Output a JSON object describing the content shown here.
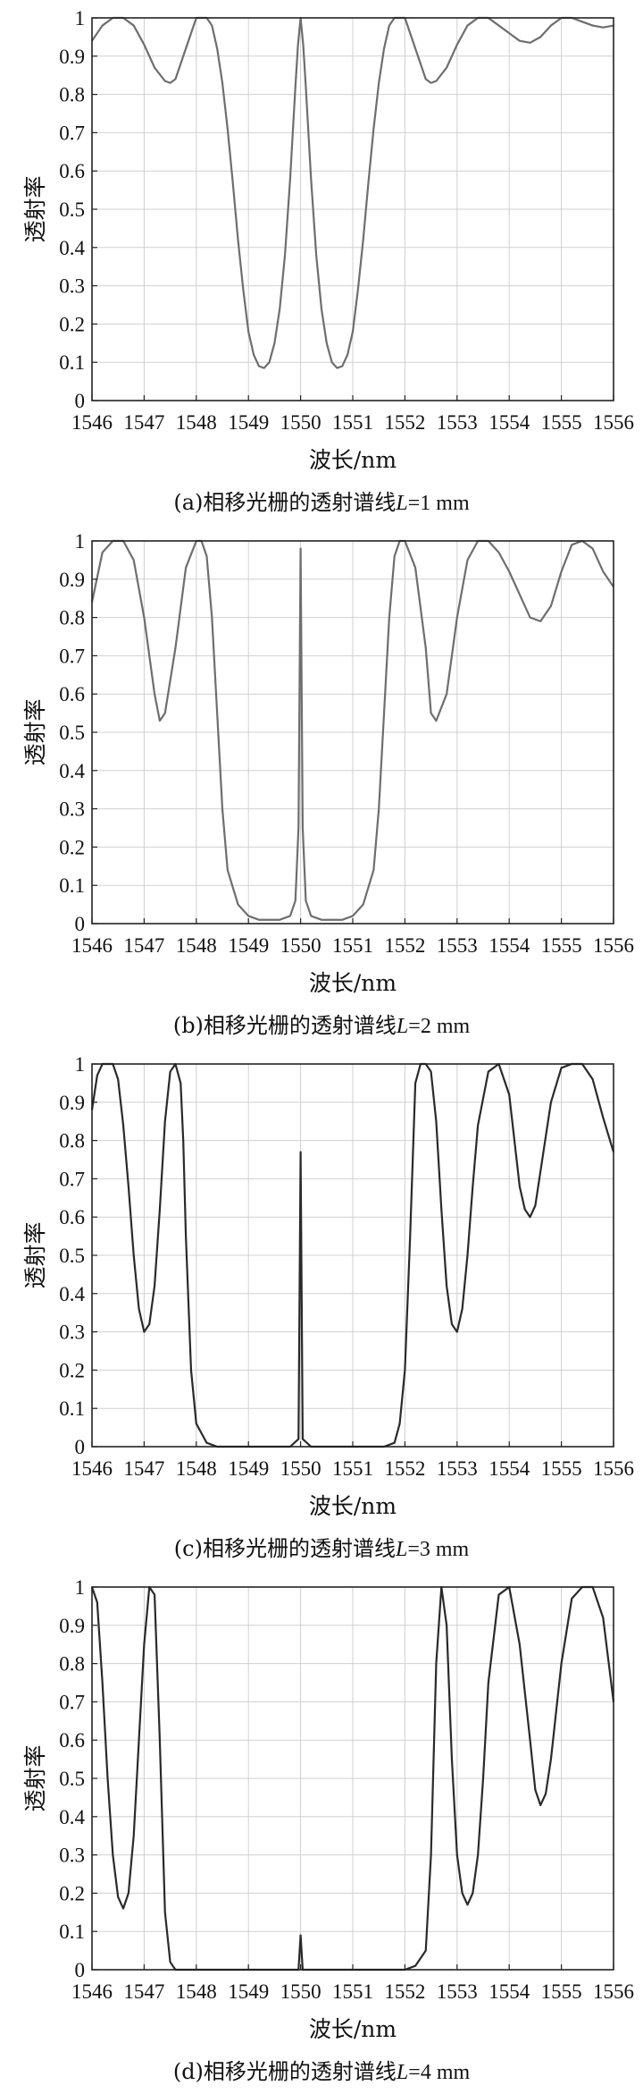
{
  "chart_data": [
    {
      "type": "line",
      "xlabel": "波长/nm",
      "ylabel": "透射率",
      "caption": "(a)相移光栅的透射谱线L=1 mm",
      "caption_parts": [
        "(a)相移光栅的透射谱线",
        "L",
        "=1 mm"
      ],
      "xlim": [
        1546,
        1556
      ],
      "ylim": [
        0,
        1
      ],
      "xticks": [
        "1546",
        "1547",
        "1548",
        "1549",
        "1550",
        "1551",
        "1552",
        "1553",
        "1554",
        "1555",
        "1556"
      ],
      "yticks": [
        "0",
        "0.1",
        "0.2",
        "0.3",
        "0.4",
        "0.5",
        "0.6",
        "0.7",
        "0.8",
        "0.9",
        "1"
      ],
      "grid": true,
      "line_color": "#6e6e6e",
      "x": [
        1546.0,
        1546.2,
        1546.4,
        1546.6,
        1546.8,
        1547.0,
        1547.2,
        1547.4,
        1547.5,
        1547.6,
        1547.8,
        1548.0,
        1548.2,
        1548.3,
        1548.4,
        1548.5,
        1548.6,
        1548.7,
        1548.8,
        1548.9,
        1549.0,
        1549.1,
        1549.2,
        1549.3,
        1549.4,
        1549.5,
        1549.6,
        1549.7,
        1549.8,
        1549.9,
        1549.95,
        1550.0,
        1550.05,
        1550.1,
        1550.2,
        1550.3,
        1550.4,
        1550.5,
        1550.6,
        1550.7,
        1550.8,
        1550.9,
        1551.0,
        1551.1,
        1551.2,
        1551.3,
        1551.4,
        1551.5,
        1551.6,
        1551.7,
        1551.8,
        1552.0,
        1552.2,
        1552.4,
        1552.5,
        1552.6,
        1552.8,
        1553.0,
        1553.2,
        1553.4,
        1553.6,
        1553.8,
        1554.0,
        1554.2,
        1554.4,
        1554.6,
        1554.8,
        1555.0,
        1555.2,
        1555.4,
        1555.6,
        1555.8,
        1556.0
      ],
      "y": [
        0.94,
        0.98,
        1.0,
        1.0,
        0.98,
        0.93,
        0.87,
        0.835,
        0.83,
        0.84,
        0.92,
        1.0,
        1.0,
        0.98,
        0.92,
        0.83,
        0.71,
        0.57,
        0.42,
        0.29,
        0.18,
        0.12,
        0.09,
        0.085,
        0.1,
        0.15,
        0.24,
        0.38,
        0.58,
        0.82,
        0.93,
        1.0,
        0.93,
        0.82,
        0.58,
        0.38,
        0.24,
        0.15,
        0.1,
        0.085,
        0.09,
        0.12,
        0.18,
        0.29,
        0.42,
        0.57,
        0.71,
        0.83,
        0.92,
        0.98,
        1.0,
        1.0,
        0.92,
        0.84,
        0.83,
        0.835,
        0.87,
        0.93,
        0.98,
        1.0,
        1.0,
        0.98,
        0.96,
        0.94,
        0.935,
        0.95,
        0.98,
        1.0,
        1.0,
        0.99,
        0.98,
        0.975,
        0.98
      ]
    },
    {
      "type": "line",
      "xlabel": "波长/nm",
      "ylabel": "透射率",
      "caption": "(b)相移光栅的透射谱线L=2 mm",
      "caption_parts": [
        "(b)相移光栅的透射谱线",
        "L",
        "=2 mm"
      ],
      "xlim": [
        1546,
        1556
      ],
      "ylim": [
        0,
        1
      ],
      "xticks": [
        "1546",
        "1547",
        "1548",
        "1549",
        "1550",
        "1551",
        "1552",
        "1553",
        "1554",
        "1555",
        "1556"
      ],
      "yticks": [
        "0",
        "0.1",
        "0.2",
        "0.3",
        "0.4",
        "0.5",
        "0.6",
        "0.7",
        "0.8",
        "0.9",
        "1"
      ],
      "grid": true,
      "line_color": "#6e6e6e",
      "x": [
        1546.0,
        1546.2,
        1546.4,
        1546.6,
        1546.8,
        1547.0,
        1547.2,
        1547.3,
        1547.4,
        1547.6,
        1547.8,
        1548.0,
        1548.1,
        1548.2,
        1548.3,
        1548.4,
        1548.5,
        1548.6,
        1548.8,
        1549.0,
        1549.2,
        1549.4,
        1549.6,
        1549.8,
        1549.9,
        1549.96,
        1550.0,
        1550.04,
        1550.1,
        1550.2,
        1550.4,
        1550.6,
        1550.8,
        1551.0,
        1551.2,
        1551.4,
        1551.5,
        1551.6,
        1551.7,
        1551.8,
        1551.9,
        1552.0,
        1552.2,
        1552.4,
        1552.5,
        1552.6,
        1552.8,
        1553.0,
        1553.2,
        1553.4,
        1553.6,
        1553.8,
        1554.0,
        1554.2,
        1554.4,
        1554.6,
        1554.8,
        1555.0,
        1555.2,
        1555.4,
        1555.6,
        1555.8,
        1556.0
      ],
      "y": [
        0.84,
        0.97,
        1.0,
        1.0,
        0.95,
        0.8,
        0.6,
        0.53,
        0.55,
        0.72,
        0.93,
        1.0,
        1.0,
        0.96,
        0.8,
        0.55,
        0.3,
        0.14,
        0.05,
        0.02,
        0.01,
        0.01,
        0.01,
        0.02,
        0.06,
        0.25,
        0.98,
        0.25,
        0.06,
        0.02,
        0.01,
        0.01,
        0.01,
        0.02,
        0.05,
        0.14,
        0.3,
        0.55,
        0.8,
        0.96,
        1.0,
        1.0,
        0.93,
        0.72,
        0.55,
        0.53,
        0.6,
        0.8,
        0.95,
        1.0,
        1.0,
        0.97,
        0.92,
        0.86,
        0.8,
        0.79,
        0.83,
        0.92,
        0.99,
        1.0,
        0.98,
        0.92,
        0.88
      ]
    },
    {
      "type": "line",
      "xlabel": "波长/nm",
      "ylabel": "透射率",
      "caption": "(c)相移光栅的透射谱线L=3 mm",
      "caption_parts": [
        "(c)相移光栅的透射谱线",
        "L",
        "=3 mm"
      ],
      "xlim": [
        1546,
        1556
      ],
      "ylim": [
        0,
        1
      ],
      "xticks": [
        "1546",
        "1547",
        "1548",
        "1549",
        "1550",
        "1551",
        "1552",
        "1553",
        "1554",
        "1555",
        "1556"
      ],
      "yticks": [
        "0",
        "0.1",
        "0.2",
        "0.3",
        "0.4",
        "0.5",
        "0.6",
        "0.7",
        "0.8",
        "0.9",
        "1"
      ],
      "grid": true,
      "line_color": "#2a2a2a",
      "x": [
        1546.0,
        1546.1,
        1546.2,
        1546.4,
        1546.5,
        1546.6,
        1546.7,
        1546.8,
        1546.9,
        1547.0,
        1547.1,
        1547.2,
        1547.3,
        1547.4,
        1547.5,
        1547.6,
        1547.7,
        1547.75,
        1547.8,
        1547.9,
        1548.0,
        1548.2,
        1548.4,
        1548.6,
        1548.8,
        1549.0,
        1549.2,
        1549.4,
        1549.6,
        1549.8,
        1549.96,
        1550.0,
        1550.04,
        1550.2,
        1550.4,
        1550.6,
        1550.8,
        1551.0,
        1551.2,
        1551.4,
        1551.6,
        1551.8,
        1551.9,
        1552.0,
        1552.1,
        1552.2,
        1552.3,
        1552.4,
        1552.5,
        1552.6,
        1552.7,
        1552.8,
        1552.9,
        1553.0,
        1553.1,
        1553.2,
        1553.3,
        1553.4,
        1553.6,
        1553.8,
        1554.0,
        1554.1,
        1554.2,
        1554.3,
        1554.4,
        1554.5,
        1554.6,
        1554.8,
        1555.0,
        1555.2,
        1555.4,
        1555.6,
        1555.8,
        1556.0
      ],
      "y": [
        0.88,
        0.97,
        1.0,
        1.0,
        0.96,
        0.84,
        0.68,
        0.5,
        0.36,
        0.3,
        0.32,
        0.42,
        0.62,
        0.85,
        0.98,
        1.0,
        0.95,
        0.8,
        0.55,
        0.2,
        0.06,
        0.01,
        0.0,
        0.0,
        0.0,
        0.0,
        0.0,
        0.0,
        0.0,
        0.0,
        0.02,
        0.77,
        0.02,
        0.0,
        0.0,
        0.0,
        0.0,
        0.0,
        0.0,
        0.0,
        0.0,
        0.01,
        0.06,
        0.2,
        0.55,
        0.95,
        1.0,
        1.0,
        0.98,
        0.85,
        0.62,
        0.42,
        0.32,
        0.3,
        0.36,
        0.5,
        0.68,
        0.84,
        0.98,
        1.0,
        0.92,
        0.8,
        0.68,
        0.62,
        0.6,
        0.63,
        0.72,
        0.9,
        0.99,
        1.0,
        1.0,
        0.96,
        0.86,
        0.77
      ]
    },
    {
      "type": "line",
      "xlabel": "波长/nm",
      "ylabel": "透射率",
      "caption": "(d)相移光栅的透射谱线L=4 mm",
      "caption_parts": [
        "(d)相移光栅的透射谱线",
        "L",
        "=4 mm"
      ],
      "xlim": [
        1546,
        1556
      ],
      "ylim": [
        0,
        1
      ],
      "xticks": [
        "1546",
        "1547",
        "1548",
        "1549",
        "1550",
        "1551",
        "1552",
        "1553",
        "1554",
        "1555",
        "1556"
      ],
      "yticks": [
        "0",
        "0.1",
        "0.2",
        "0.3",
        "0.4",
        "0.5",
        "0.6",
        "0.7",
        "0.8",
        "0.9",
        "1"
      ],
      "grid": true,
      "line_color": "#2a2a2a",
      "x": [
        1546.0,
        1546.1,
        1546.2,
        1546.3,
        1546.4,
        1546.5,
        1546.6,
        1546.7,
        1546.8,
        1546.9,
        1547.0,
        1547.1,
        1547.2,
        1547.3,
        1547.4,
        1547.5,
        1547.6,
        1547.8,
        1548.0,
        1548.5,
        1549.0,
        1549.5,
        1549.96,
        1550.0,
        1550.04,
        1550.5,
        1551.0,
        1551.5,
        1552.0,
        1552.2,
        1552.4,
        1552.5,
        1552.6,
        1552.7,
        1552.8,
        1552.9,
        1553.0,
        1553.1,
        1553.2,
        1553.3,
        1553.4,
        1553.5,
        1553.6,
        1553.8,
        1554.0,
        1554.2,
        1554.4,
        1554.5,
        1554.6,
        1554.7,
        1554.8,
        1555.0,
        1555.2,
        1555.4,
        1555.6,
        1555.8,
        1556.0
      ],
      "y": [
        1.0,
        0.96,
        0.75,
        0.5,
        0.3,
        0.19,
        0.16,
        0.2,
        0.35,
        0.6,
        0.85,
        1.0,
        0.98,
        0.6,
        0.15,
        0.02,
        0.0,
        0.0,
        0.0,
        0.0,
        0.0,
        0.0,
        0.0,
        0.09,
        0.0,
        0.0,
        0.0,
        0.0,
        0.0,
        0.01,
        0.05,
        0.3,
        0.8,
        1.0,
        0.9,
        0.55,
        0.3,
        0.2,
        0.17,
        0.2,
        0.3,
        0.5,
        0.75,
        0.98,
        1.0,
        0.85,
        0.6,
        0.47,
        0.43,
        0.46,
        0.55,
        0.8,
        0.97,
        1.0,
        1.0,
        0.92,
        0.7
      ]
    }
  ]
}
